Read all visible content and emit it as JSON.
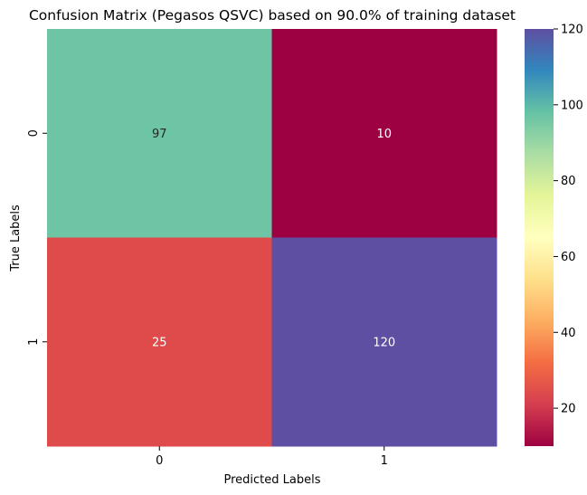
{
  "chart_data": {
    "type": "heatmap",
    "title": "Confusion Matrix (Pegasos QSVC) based on 90.0% of training dataset",
    "xlabel": "Predicted Labels",
    "ylabel": "True Labels",
    "x_categories": [
      "0",
      "1"
    ],
    "y_categories": [
      "0",
      "1"
    ],
    "values": [
      [
        97,
        10
      ],
      [
        25,
        120
      ]
    ],
    "colormap": "Spectral",
    "vmin": 10,
    "vmax": 120,
    "colorbar_ticks": [
      "20",
      "40",
      "60",
      "80",
      "100",
      "120"
    ],
    "colorbar_tick_values": [
      20,
      40,
      60,
      80,
      100,
      120
    ],
    "cell_colors": [
      [
        "#6dc5a6",
        "#9e0142"
      ],
      [
        "#df4b4b",
        "#5e4fa2"
      ]
    ],
    "annotation_colors": [
      [
        "#262626",
        "#ffffff"
      ],
      [
        "#ffffff",
        "#ffffff"
      ]
    ],
    "colorbar_stops": [
      "#9e0142",
      "#d53e4f",
      "#f46d43",
      "#fdae61",
      "#fee08b",
      "#ffffbf",
      "#e6f598",
      "#abdda4",
      "#66c2a5",
      "#3288bd",
      "#5e4fa2"
    ]
  }
}
